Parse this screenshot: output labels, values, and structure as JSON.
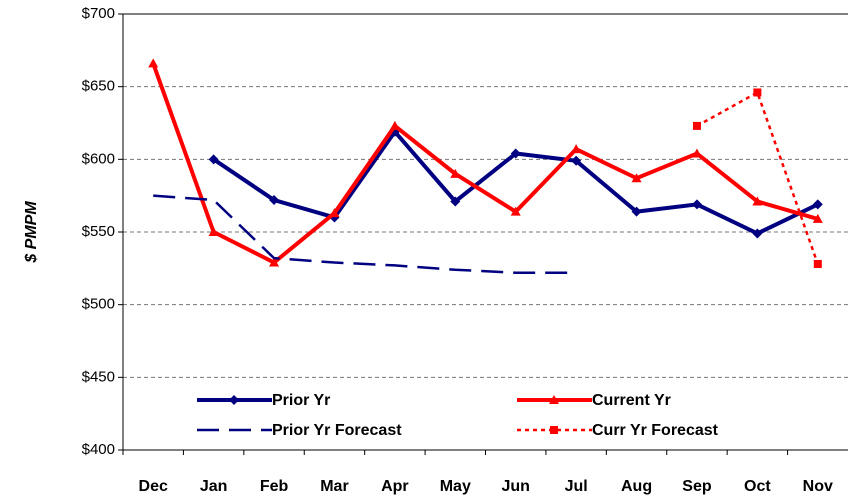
{
  "chart_data": {
    "type": "line",
    "y_label": "$ PMPM",
    "categories": [
      "Dec",
      "Jan",
      "Feb",
      "Mar",
      "Apr",
      "May",
      "Jun",
      "Jul",
      "Aug",
      "Sep",
      "Oct",
      "Nov"
    ],
    "series": [
      {
        "name": "Prior Yr",
        "color": "#000080",
        "style": "solid",
        "marker": "diamond",
        "values": [
          null,
          600,
          572,
          560,
          619,
          571,
          604,
          599,
          564,
          569,
          549,
          569
        ]
      },
      {
        "name": "Current Yr",
        "color": "#ff0000",
        "style": "solid",
        "marker": "triangle",
        "values": [
          666,
          550,
          529,
          563,
          623,
          590,
          564,
          607,
          587,
          604,
          571,
          559
        ]
      },
      {
        "name": "Prior Yr Forecast",
        "color": "#000080",
        "style": "dashed",
        "marker": "none",
        "values": [
          575,
          572,
          532,
          529,
          527,
          524,
          522,
          522,
          null,
          null,
          null,
          null
        ]
      },
      {
        "name": "Curr Yr Forecast",
        "color": "#ff0000",
        "style": "dotted",
        "marker": "square",
        "values": [
          null,
          null,
          null,
          null,
          null,
          null,
          null,
          null,
          null,
          623,
          646,
          528
        ]
      }
    ],
    "ylim": [
      400,
      700
    ],
    "yticks": [
      {
        "value": 400,
        "label": "$400"
      },
      {
        "value": 450,
        "label": "$450"
      },
      {
        "value": 500,
        "label": "$500"
      },
      {
        "value": 550,
        "label": "$550"
      },
      {
        "value": 600,
        "label": "$600"
      },
      {
        "value": 650,
        "label": "$650"
      },
      {
        "value": 700,
        "label": "$700"
      }
    ],
    "grid": true,
    "legend": "bottom"
  }
}
